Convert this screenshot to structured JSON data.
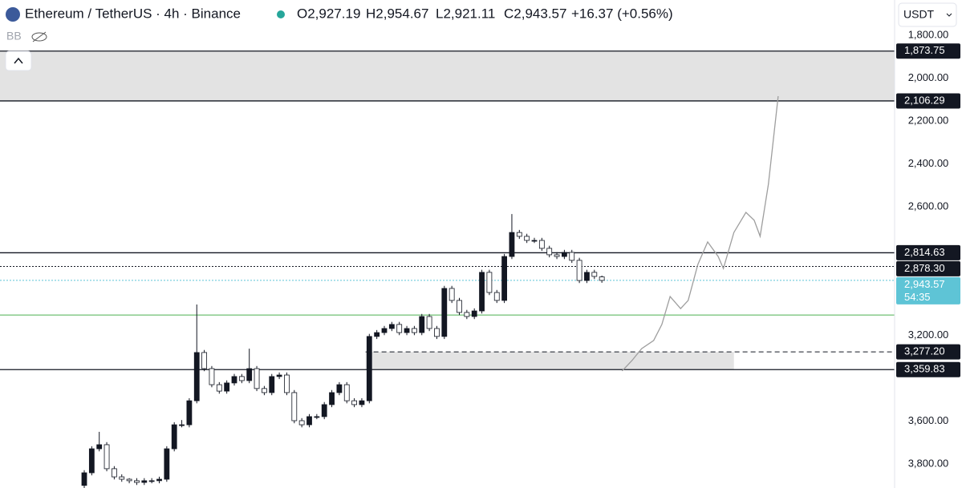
{
  "header": {
    "symbol": "Ethereum / TetherUS · 4h · Binance",
    "open": "O2,927.19",
    "high": "H2,954.67",
    "low": "L2,921.11",
    "close": "C2,943.57",
    "change": "+16.37 (+0.56%)",
    "indicator": "BB",
    "currency": "USDT"
  },
  "chart_data": {
    "type": "candlestick",
    "inverted": true,
    "ylim": [
      1635.5,
      3912
    ],
    "yticks": [
      {
        "value": 1800,
        "label": "1,800.00"
      },
      {
        "value": 2000,
        "label": "2,000.00"
      },
      {
        "value": 2200,
        "label": "2,200.00"
      },
      {
        "value": 2400,
        "label": "2,400.00"
      },
      {
        "value": 2600,
        "label": "2,600.00"
      },
      {
        "value": 3200,
        "label": "3,200.00"
      },
      {
        "value": 3600,
        "label": "3,600.00"
      },
      {
        "value": 3800,
        "label": "3,800.00"
      }
    ],
    "up_color": "#ffffff",
    "down_color": "#131722",
    "candles": [
      [
        3900,
        3912,
        3829,
        3841
      ],
      [
        3841,
        3853,
        3717,
        3729
      ],
      [
        3729,
        3741,
        3650,
        3710
      ],
      [
        3710,
        3834,
        3698,
        3822
      ],
      [
        3822,
        3872,
        3810,
        3860
      ],
      [
        3860,
        3883,
        3848,
        3871
      ],
      [
        3871,
        3890,
        3866,
        3878
      ],
      [
        3878,
        3898,
        3866,
        3886
      ],
      [
        3886,
        3898,
        3866,
        3878
      ],
      [
        3878,
        3890,
        3866,
        3878
      ],
      [
        3878,
        3890,
        3859,
        3871
      ],
      [
        3871,
        3883,
        3717,
        3729
      ],
      [
        3729,
        3741,
        3605,
        3617
      ],
      [
        3617,
        3629,
        3595,
        3617
      ],
      [
        3617,
        3629,
        3493,
        3505
      ],
      [
        3505,
        3517,
        3056,
        3280
      ],
      [
        3280,
        3367,
        3268,
        3355
      ],
      [
        3355,
        3442,
        3343,
        3430
      ],
      [
        3430,
        3472,
        3418,
        3460
      ],
      [
        3460,
        3472,
        3410,
        3422
      ],
      [
        3422,
        3434,
        3380,
        3392
      ],
      [
        3392,
        3423,
        3380,
        3411
      ],
      [
        3411,
        3423,
        3262,
        3355
      ],
      [
        3355,
        3460,
        3343,
        3448
      ],
      [
        3448,
        3479,
        3436,
        3467
      ],
      [
        3467,
        3479,
        3380,
        3392
      ],
      [
        3392,
        3404,
        3373,
        3385
      ],
      [
        3385,
        3479,
        3373,
        3467
      ],
      [
        3467,
        3610,
        3455,
        3598
      ],
      [
        3598,
        3629,
        3586,
        3617
      ],
      [
        3617,
        3629,
        3567,
        3579
      ],
      [
        3579,
        3591,
        3567,
        3579
      ],
      [
        3579,
        3591,
        3511,
        3523
      ],
      [
        3523,
        3535,
        3455,
        3467
      ],
      [
        3467,
        3479,
        3418,
        3430
      ],
      [
        3430,
        3517,
        3418,
        3505
      ],
      [
        3505,
        3535,
        3493,
        3523
      ],
      [
        3523,
        3535,
        3493,
        3505
      ],
      [
        3505,
        3517,
        3193,
        3205
      ],
      [
        3205,
        3217,
        3175,
        3187
      ],
      [
        3187,
        3199,
        3156,
        3168
      ],
      [
        3168,
        3180,
        3137,
        3149
      ],
      [
        3149,
        3199,
        3137,
        3187
      ],
      [
        3187,
        3199,
        3156,
        3168
      ],
      [
        3168,
        3199,
        3156,
        3187
      ],
      [
        3187,
        3199,
        3100,
        3112
      ],
      [
        3112,
        3180,
        3100,
        3168
      ],
      [
        3168,
        3217,
        3156,
        3205
      ],
      [
        3205,
        3217,
        2969,
        2981
      ],
      [
        2981,
        3049,
        2969,
        3037
      ],
      [
        3037,
        3105,
        3025,
        3093
      ],
      [
        3093,
        3124,
        3081,
        3112
      ],
      [
        3112,
        3124,
        3074,
        3086
      ],
      [
        3086,
        3098,
        2894,
        2906
      ],
      [
        2906,
        3012,
        2894,
        3000
      ],
      [
        3000,
        3049,
        2988,
        3037
      ],
      [
        3037,
        3049,
        2820,
        2832
      ],
      [
        2832,
        2844,
        2634,
        2720
      ],
      [
        2720,
        2750,
        2708,
        2738
      ],
      [
        2738,
        2769,
        2726,
        2757
      ],
      [
        2757,
        2769,
        2745,
        2757
      ],
      [
        2757,
        2806,
        2745,
        2794
      ],
      [
        2794,
        2836,
        2782,
        2824
      ],
      [
        2824,
        2844,
        2812,
        2832
      ],
      [
        2832,
        2844,
        2801,
        2813
      ],
      [
        2813,
        2862,
        2801,
        2850
      ],
      [
        2850,
        2956,
        2838,
        2944
      ],
      [
        2944,
        2956,
        2894,
        2906
      ],
      [
        2906,
        2937,
        2894,
        2925
      ],
      [
        2927.19,
        2954.67,
        2921.11,
        2943.57
      ]
    ],
    "projection": {
      "color": "#9e9e9e",
      "x": [
        71.7,
        73.0,
        74.3,
        75.9,
        77.0,
        78.1,
        79.5,
        80.5,
        81.8,
        83.1,
        84.5,
        85.2,
        86.6,
        88.2,
        89.3,
        90.1,
        91.2,
        92.5
      ],
      "values": [
        3366,
        3318,
        3262,
        3224,
        3149,
        3019,
        3075,
        3037,
        2869,
        2764,
        2832,
        2888,
        2720,
        2626,
        2663,
        2738,
        2495,
        2084
      ]
    },
    "support_line": {
      "value": 3105,
      "color": "#4caf50"
    },
    "zones": [
      {
        "from": 1873.75,
        "to": 2106.29
      },
      {
        "from": 3277.2,
        "to": 3359.83
      }
    ],
    "price_lines": [
      {
        "value": 1873.75,
        "label": "1,873.75",
        "style": "solid",
        "color": "#131722"
      },
      {
        "value": 2106.29,
        "label": "2,106.29",
        "style": "solid",
        "color": "#131722"
      },
      {
        "value": 2814.63,
        "label": "2,814.63",
        "style": "solid",
        "color": "#131722"
      },
      {
        "value": 2878.3,
        "label": "2,878.30",
        "style": "dotted",
        "color": "#131722"
      },
      {
        "value": 2943.57,
        "label": "2,943.57",
        "style": "dotted",
        "color": "#5ec4d6",
        "countdown": "54:35"
      },
      {
        "value": 3277.2,
        "label": "3,277.20",
        "style": "dashed",
        "color": "#131722"
      },
      {
        "value": 3359.83,
        "label": "3,359.83",
        "style": "solid",
        "color": "#131722"
      }
    ]
  }
}
